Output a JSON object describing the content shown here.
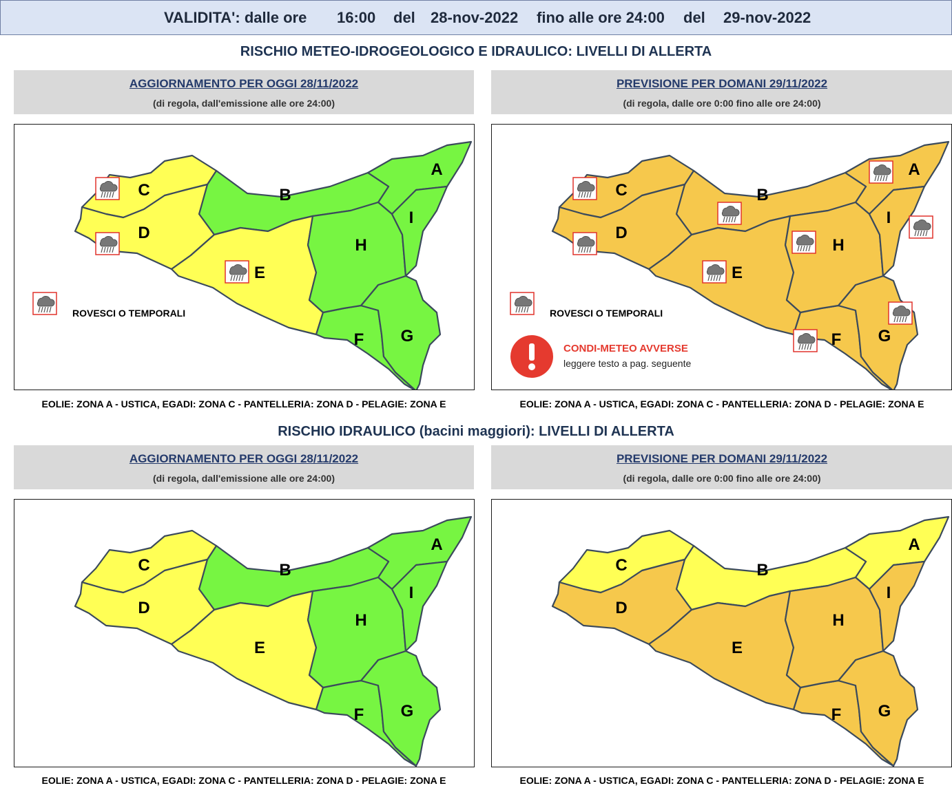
{
  "validity": {
    "label": "VALIDITA': dalle ore",
    "from_time": "16:00",
    "del_1": "del",
    "from_date": "28-nov-2022",
    "until_label": "fino alle ore 24:00",
    "del_2": "del",
    "to_date": "29-nov-2022"
  },
  "sections": {
    "meteo_title": "RISCHIO METEO-IDROGEOLOGICO E IDRAULICO: LIVELLI DI ALLERTA",
    "idraulico_title": "RISCHIO IDRAULICO (bacini maggiori): LIVELLI DI ALLERTA"
  },
  "headers": {
    "today_title": "AGGIORNAMENTO PER OGGI 28/11/2022",
    "today_sub": "(di regola, dall'emissione alle ore 24:00)",
    "tomorrow_title": "PREVISIONE PER DOMANI 29/11/2022",
    "tomorrow_sub": "(di regola, dalle ore 0:00 fino alle ore 24:00)"
  },
  "footer_note": "EOLIE: ZONA A - USTICA, EGADI: ZONA C - PANTELLERIA: ZONA D - PELAGIE: ZONA E",
  "legend": {
    "storm_label": "ROVESCI O TEMPORALI",
    "warning_title": "CONDI-METEO AVVERSE",
    "warning_sub": "leggere testo a pag. seguente"
  },
  "colors": {
    "green": "#77f542",
    "yellow": "#ffff55",
    "orange": "#f6c84c",
    "border": "#3b4a5c",
    "storm_box": "#e0322b",
    "warning": "#e53a2f"
  },
  "zone_names": [
    "A",
    "B",
    "C",
    "D",
    "E",
    "F",
    "G",
    "H",
    "I"
  ],
  "maps": {
    "meteo_today": {
      "levels": {
        "A": "green",
        "B": "green",
        "C": "yellow",
        "D": "yellow",
        "E": "yellow",
        "F": "green",
        "G": "green",
        "H": "green",
        "I": "green"
      },
      "storm_zones": [
        "C",
        "D",
        "E"
      ],
      "show_storm_legend": true,
      "show_warning": false
    },
    "meteo_tomorrow": {
      "levels": {
        "A": "orange",
        "B": "orange",
        "C": "orange",
        "D": "orange",
        "E": "orange",
        "F": "orange",
        "G": "orange",
        "H": "orange",
        "I": "orange"
      },
      "storm_zones": [
        "A",
        "B",
        "C",
        "D",
        "E",
        "F",
        "G",
        "H",
        "I"
      ],
      "show_storm_legend": true,
      "show_warning": true
    },
    "idro_today": {
      "levels": {
        "A": "green",
        "B": "green",
        "C": "yellow",
        "D": "yellow",
        "E": "yellow",
        "F": "green",
        "G": "green",
        "H": "green",
        "I": "green"
      },
      "storm_zones": [],
      "show_storm_legend": false,
      "show_warning": false
    },
    "idro_tomorrow": {
      "levels": {
        "A": "yellow",
        "B": "yellow",
        "C": "yellow",
        "D": "orange",
        "E": "orange",
        "F": "orange",
        "G": "orange",
        "H": "orange",
        "I": "orange"
      },
      "storm_zones": [],
      "show_storm_legend": false,
      "show_warning": false
    }
  }
}
